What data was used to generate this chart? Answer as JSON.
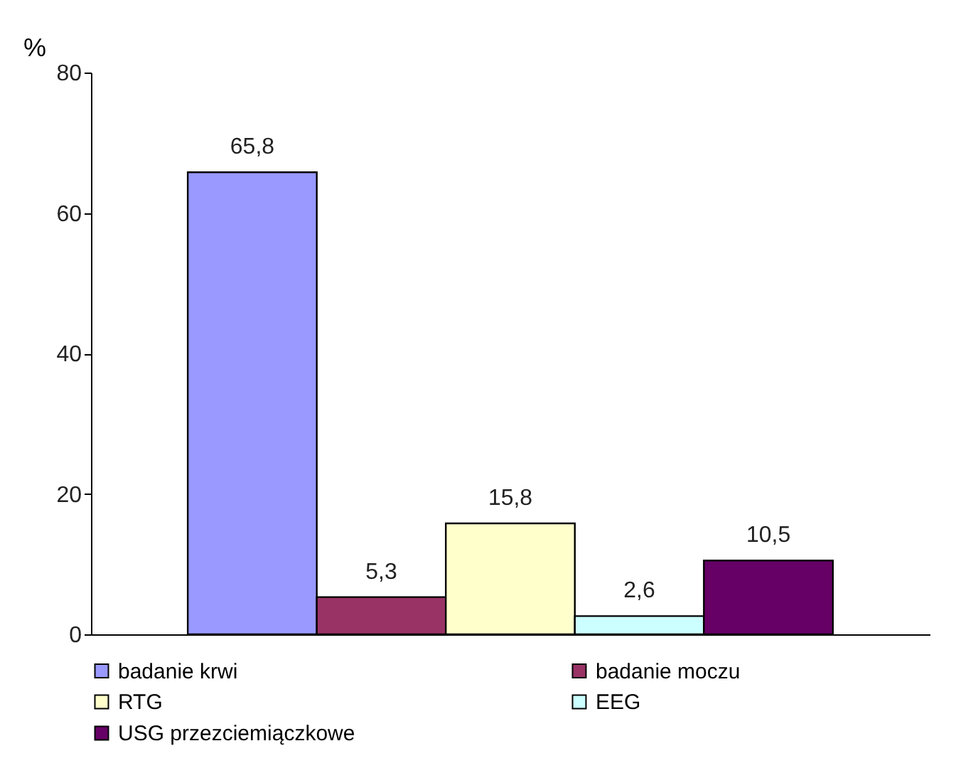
{
  "chart_data": {
    "type": "bar",
    "ylabel": "%",
    "categories": [
      null
    ],
    "series": [
      {
        "name": "badanie krwi",
        "color": "#9999ff",
        "values": [
          65.8
        ],
        "value_labels": [
          "65,8"
        ]
      },
      {
        "name": "badanie moczu",
        "color": "#993366",
        "values": [
          5.3
        ],
        "value_labels": [
          "5,3"
        ]
      },
      {
        "name": "RTG",
        "color": "#ffffcc",
        "values": [
          15.8
        ],
        "value_labels": [
          "15,8"
        ]
      },
      {
        "name": "EEG",
        "color": "#ccffff",
        "values": [
          2.6
        ],
        "value_labels": [
          "2,6"
        ]
      },
      {
        "name": "USG przezciemiączkowe",
        "color": "#660066",
        "values": [
          10.5
        ],
        "value_labels": [
          "10,5"
        ]
      }
    ],
    "ylim": [
      0,
      80
    ],
    "yticks": [
      0,
      20,
      40,
      60,
      80
    ],
    "legend": "bottom",
    "grid": false
  }
}
